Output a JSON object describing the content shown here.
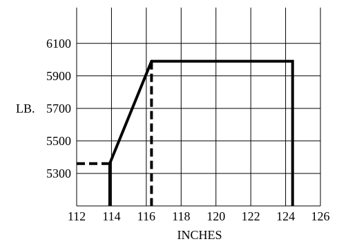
{
  "chart_data": {
    "type": "line",
    "title": "",
    "xlabel": "INCHES",
    "ylabel": "LB.",
    "xlim": [
      112,
      126
    ],
    "ylim": [
      5100,
      6320
    ],
    "grid": true,
    "x_ticks": [
      112,
      114,
      116,
      118,
      120,
      122,
      124,
      126
    ],
    "y_ticks": [
      5300,
      5500,
      5700,
      5900,
      6100
    ],
    "x_tick_labels": [
      "112",
      "114",
      "116",
      "118",
      "120",
      "122",
      "124",
      "126"
    ],
    "y_tick_labels": [
      "5300",
      "5500",
      "5700",
      "5900",
      "6100"
    ],
    "series": [
      {
        "style": "solid",
        "x": [
          113.9,
          113.9,
          116.3,
          124.4,
          124.4
        ],
        "y": [
          5100,
          5360,
          5990,
          5990,
          5100
        ]
      },
      {
        "style": "dashed",
        "x": [
          112,
          113.9
        ],
        "y": [
          5360,
          5360
        ]
      },
      {
        "style": "dashed",
        "x": [
          116.3,
          116.3
        ],
        "y": [
          5990,
          5100
        ]
      }
    ],
    "colors": {
      "line": "#000000",
      "grid": "#000000",
      "background": "#ffffff"
    }
  }
}
